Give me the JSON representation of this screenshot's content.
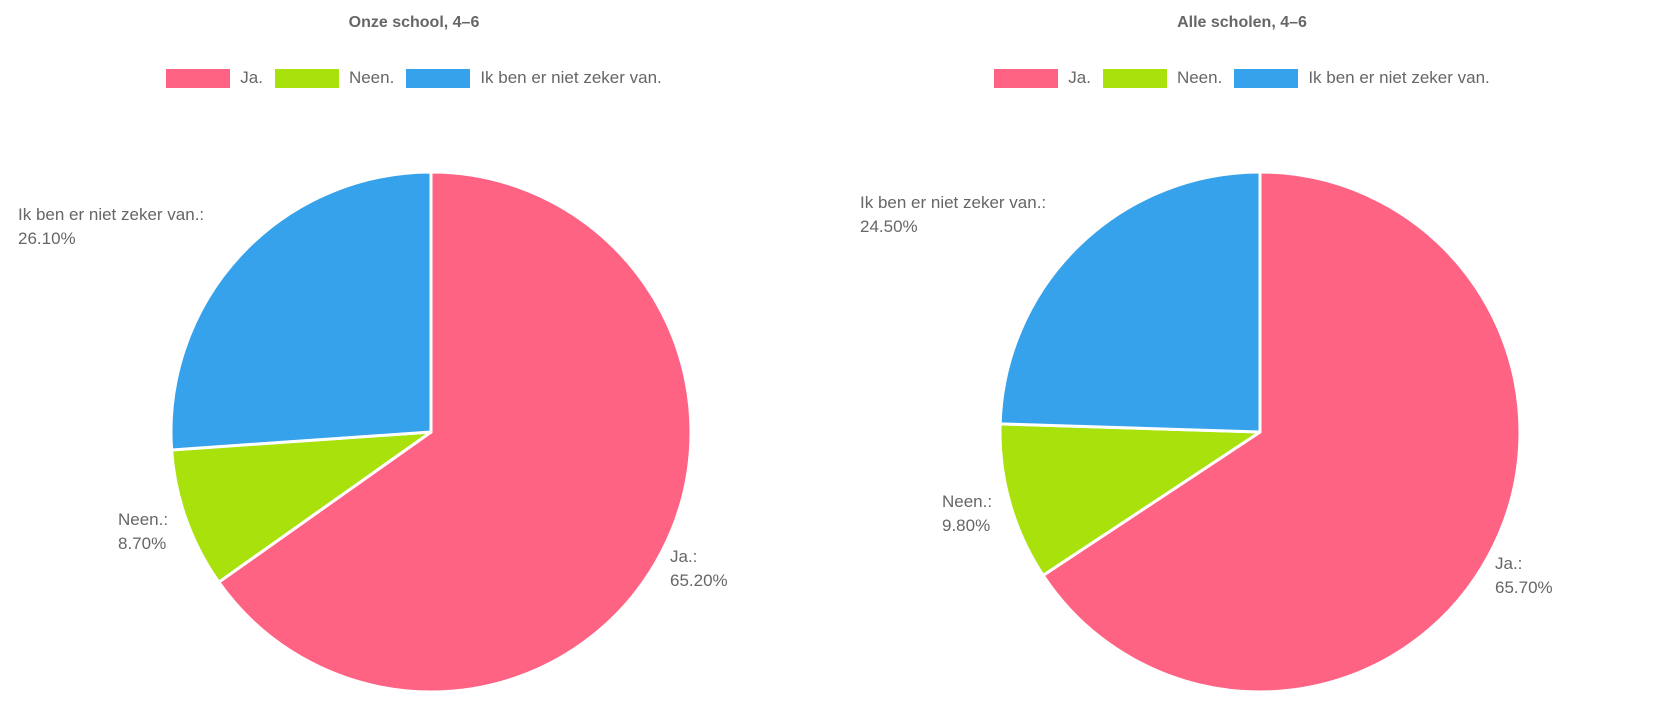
{
  "chart_data": [
    {
      "type": "pie",
      "title": "Onze school, 4–6",
      "categories": [
        "Ja.",
        "Neen.",
        "Ik ben er niet zeker van."
      ],
      "values": [
        65.2,
        8.7,
        26.1
      ],
      "labels": [
        "Ja.:",
        "Neen.:",
        "Ik ben er niet zeker van.:"
      ],
      "value_labels": [
        "65.20%",
        "8.70%",
        "26.10%"
      ],
      "colors": [
        "#ff6384",
        "#a8e10c",
        "#36a2eb"
      ],
      "legend_position": "top"
    },
    {
      "type": "pie",
      "title": "Alle scholen, 4–6",
      "categories": [
        "Ja.",
        "Neen.",
        "Ik ben er niet zeker van."
      ],
      "values": [
        65.7,
        9.8,
        24.5
      ],
      "labels": [
        "Ja.:",
        "Neen.:",
        "Ik ben er niet zeker van.:"
      ],
      "value_labels": [
        "65.70%",
        "9.80%",
        "24.50%"
      ],
      "colors": [
        "#ff6384",
        "#a8e10c",
        "#36a2eb"
      ],
      "legend_position": "top"
    }
  ]
}
